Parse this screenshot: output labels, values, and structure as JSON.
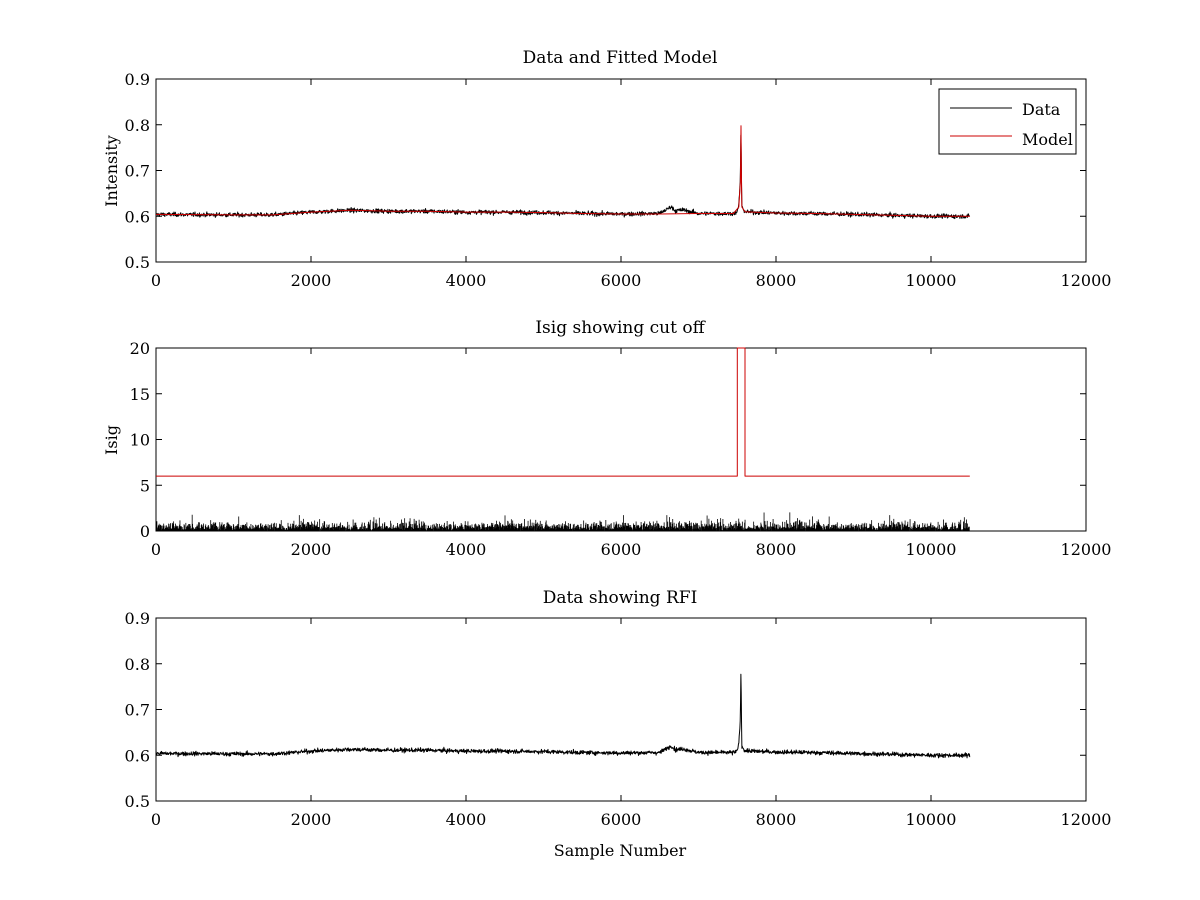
{
  "figure": {
    "background": "#ffffff",
    "series_colors": {
      "data": "#000000",
      "model": "#cc0000"
    }
  },
  "chart_data": [
    {
      "type": "line",
      "title": "Data and Fitted Model",
      "xlabel": "",
      "ylabel": "Intensity",
      "xlim": [
        0,
        12000
      ],
      "ylim": [
        0.5,
        0.9
      ],
      "xticks": [
        0,
        2000,
        4000,
        6000,
        8000,
        10000,
        12000
      ],
      "yticks": [
        0.5,
        0.6,
        0.7,
        0.8,
        0.9
      ],
      "grid": false,
      "legend": {
        "position": "top-right",
        "entries": [
          "Data",
          "Model"
        ]
      },
      "series": [
        {
          "name": "Data",
          "color": "#000000",
          "kind": "noisy",
          "x_range": [
            0,
            10500
          ],
          "noise": 0.0045,
          "baseline": {
            "x": [
              0,
              1000,
              1500,
              2000,
              2500,
              3000,
              3500,
              4000,
              4500,
              5000,
              5500,
              6000,
              6500,
              6650,
              6700,
              6800,
              7000,
              7450,
              7500,
              7520,
              7540,
              7548,
              7552,
              7556,
              7560,
              7600,
              7700,
              8000,
              8500,
              9000,
              9500,
              10000,
              10500
            ],
            "y": [
              0.604,
              0.603,
              0.603,
              0.609,
              0.613,
              0.611,
              0.611,
              0.609,
              0.609,
              0.608,
              0.606,
              0.605,
              0.606,
              0.621,
              0.612,
              0.614,
              0.606,
              0.606,
              0.609,
              0.625,
              0.68,
              0.795,
              0.72,
              0.66,
              0.62,
              0.61,
              0.609,
              0.607,
              0.606,
              0.604,
              0.602,
              0.6,
              0.6
            ]
          }
        },
        {
          "name": "Model",
          "color": "#cc0000",
          "kind": "line",
          "x": [
            0,
            1000,
            1500,
            2000,
            2500,
            3000,
            3500,
            4000,
            4500,
            5000,
            5500,
            6000,
            6500,
            7000,
            7450,
            7520,
            7540,
            7548,
            7552,
            7556,
            7560,
            7600,
            7700,
            8000,
            8500,
            9000,
            9500,
            10000,
            10500
          ],
          "y": [
            0.604,
            0.603,
            0.603,
            0.609,
            0.613,
            0.611,
            0.611,
            0.609,
            0.609,
            0.608,
            0.606,
            0.605,
            0.605,
            0.606,
            0.606,
            0.62,
            0.675,
            0.798,
            0.72,
            0.66,
            0.62,
            0.61,
            0.609,
            0.607,
            0.606,
            0.604,
            0.602,
            0.6,
            0.6
          ]
        }
      ]
    },
    {
      "type": "line",
      "title": "Isig showing cut off",
      "xlabel": "",
      "ylabel": "Isig",
      "xlim": [
        0,
        12000
      ],
      "ylim": [
        0,
        20
      ],
      "xticks": [
        0,
        2000,
        4000,
        6000,
        8000,
        10000,
        12000
      ],
      "yticks": [
        0,
        5,
        10,
        15,
        20
      ],
      "grid": false,
      "series": [
        {
          "color": "#000000",
          "kind": "spikes",
          "x_range": [
            0,
            10500
          ],
          "max": 4.2
        },
        {
          "color": "#cc0000",
          "kind": "line",
          "x": [
            0,
            7500,
            7500,
            7600,
            7600,
            10500
          ],
          "y": [
            6,
            6,
            20,
            20,
            6,
            6
          ]
        }
      ]
    },
    {
      "type": "line",
      "title": "Data showing RFI",
      "xlabel": "Sample Number",
      "ylabel": "",
      "xlim": [
        0,
        12000
      ],
      "ylim": [
        0.5,
        0.9
      ],
      "xticks": [
        0,
        2000,
        4000,
        6000,
        8000,
        10000,
        12000
      ],
      "yticks": [
        0.5,
        0.6,
        0.7,
        0.8,
        0.9
      ],
      "grid": false,
      "series": [
        {
          "color": "#000000",
          "kind": "noisy",
          "x_range": [
            0,
            10500
          ],
          "noise": 0.0045,
          "baseline": {
            "x": [
              0,
              1000,
              1500,
              2000,
              2500,
              3000,
              3500,
              4000,
              4500,
              5000,
              5500,
              6000,
              6500,
              6650,
              6700,
              6800,
              7000,
              7450,
              7500,
              7520,
              7540,
              7548,
              7552,
              7556,
              7560,
              7600,
              7700,
              8000,
              8500,
              9000,
              9500,
              10000,
              10500
            ],
            "y": [
              0.604,
              0.603,
              0.603,
              0.609,
              0.613,
              0.611,
              0.611,
              0.609,
              0.609,
              0.608,
              0.606,
              0.605,
              0.606,
              0.621,
              0.612,
              0.614,
              0.606,
              0.606,
              0.609,
              0.625,
              0.68,
              0.795,
              0.72,
              0.66,
              0.62,
              0.61,
              0.609,
              0.607,
              0.606,
              0.604,
              0.602,
              0.6,
              0.6
            ]
          }
        }
      ]
    }
  ]
}
